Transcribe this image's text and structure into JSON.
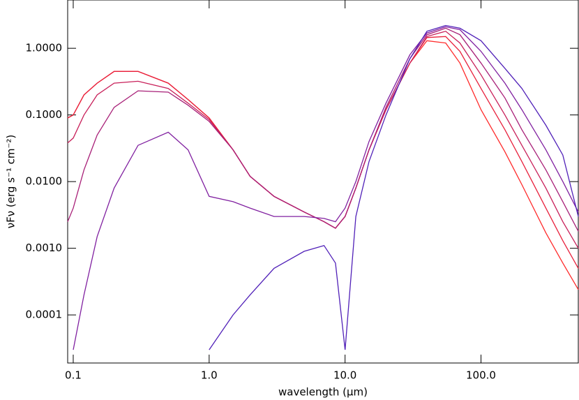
{
  "chart_data": {
    "type": "line",
    "xlabel": "wavelength (μm)",
    "ylabel": "νFν (erg s⁻¹ cm⁻²)",
    "xscale": "log",
    "yscale": "log",
    "xlim": [
      0.091,
      520
    ],
    "ylim": [
      1.9e-05,
      5.3
    ],
    "xticks": [
      0.1,
      {
        "value": 1,
        "label": "1.0"
      },
      {
        "value": 10,
        "label": "10.0"
      },
      {
        "value": 100,
        "label": "100.0"
      }
    ],
    "yticks": [
      {
        "value": 0.0001,
        "label": "0.0001"
      },
      {
        "value": 0.001,
        "label": "0.0010"
      },
      {
        "value": 0.01,
        "label": "0.0100"
      },
      {
        "value": 0.1,
        "label": "0.1000"
      },
      {
        "value": 1,
        "label": "1.0000"
      }
    ],
    "x": [
      0.091,
      0.1,
      0.12,
      0.15,
      0.2,
      0.3,
      0.5,
      0.7,
      1,
      1.5,
      2,
      3,
      5,
      7,
      8.5,
      10,
      12,
      15,
      20,
      30,
      40,
      55,
      70,
      100,
      150,
      200,
      300,
      400,
      520
    ],
    "series": [
      {
        "color": "#ff2a2a",
        "values": [
          0.09,
          0.1,
          0.2,
          0.3,
          0.45,
          0.45,
          0.3,
          0.17,
          0.09,
          0.03,
          0.012,
          0.006,
          0.0035,
          0.0025,
          0.002,
          0.003,
          0.008,
          0.03,
          0.12,
          0.6,
          1.3,
          1.2,
          0.6,
          0.12,
          0.028,
          0.009,
          0.0017,
          0.0006,
          0.00024
        ]
      },
      {
        "color": "#e8203c",
        "values": [
          0.09,
          0.1,
          0.2,
          0.3,
          0.45,
          0.45,
          0.3,
          0.17,
          0.09,
          0.03,
          0.012,
          0.006,
          0.0035,
          0.0025,
          0.002,
          0.003,
          0.008,
          0.03,
          0.12,
          0.6,
          1.45,
          1.5,
          0.9,
          0.25,
          0.06,
          0.02,
          0.004,
          0.0013,
          0.0005
        ]
      },
      {
        "color": "#c8205a",
        "values": [
          0.038,
          0.045,
          0.1,
          0.2,
          0.3,
          0.32,
          0.25,
          0.15,
          0.085,
          0.03,
          0.012,
          0.006,
          0.0035,
          0.0025,
          0.002,
          0.003,
          0.008,
          0.03,
          0.12,
          0.6,
          1.5,
          1.8,
          1.2,
          0.4,
          0.1,
          0.035,
          0.008,
          0.0025,
          0.001
        ]
      },
      {
        "color": "#a82078",
        "values": [
          0.0025,
          0.004,
          0.015,
          0.05,
          0.13,
          0.23,
          0.22,
          0.14,
          0.08,
          0.03,
          0.012,
          0.006,
          0.0035,
          0.0025,
          0.002,
          0.003,
          0.008,
          0.03,
          0.13,
          0.7,
          1.6,
          2.0,
          1.6,
          0.6,
          0.18,
          0.06,
          0.015,
          0.005,
          0.0018
        ]
      },
      {
        "color": "#8020a0",
        "values": [
          null,
          3e-05,
          0.0002,
          0.0015,
          0.008,
          0.035,
          0.055,
          0.03,
          0.006,
          0.005,
          0.004,
          0.003,
          0.003,
          0.0028,
          0.0025,
          0.004,
          0.01,
          0.04,
          0.15,
          0.8,
          1.7,
          2.1,
          1.9,
          0.9,
          0.3,
          0.12,
          0.03,
          0.01,
          0.0035
        ]
      },
      {
        "color": "#5020b8",
        "values": [
          null,
          null,
          null,
          null,
          null,
          null,
          null,
          null,
          3e-05,
          0.0001,
          0.0002,
          0.0005,
          0.0009,
          0.0011,
          0.0006,
          3e-05,
          0.003,
          0.02,
          0.1,
          0.7,
          1.8,
          2.2,
          2.0,
          1.3,
          0.5,
          0.25,
          0.07,
          0.025,
          0.003
        ]
      }
    ]
  }
}
